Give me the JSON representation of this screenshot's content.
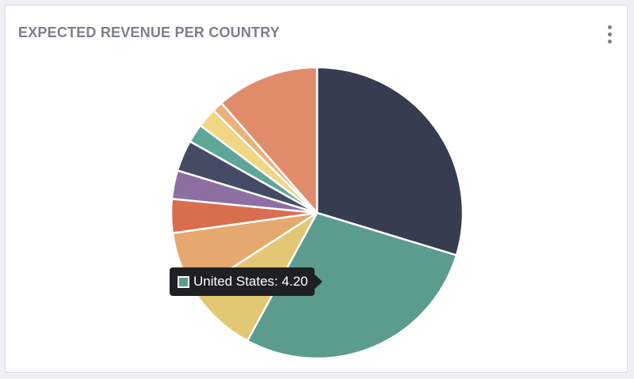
{
  "card": {
    "title": "EXPECTED REVENUE PER COUNTRY",
    "menu_icon": "vertical-ellipsis-icon"
  },
  "tooltip": {
    "country": "United States",
    "separator": ": ",
    "value": "4.20",
    "color": "#5c9c8f"
  },
  "chart_data": {
    "type": "pie",
    "title": "EXPECTED REVENUE PER COUNTRY",
    "start_angle_deg": 0,
    "direction": "clockwise",
    "slices": [
      {
        "label": "",
        "value": 30.0,
        "color": "#373d50"
      },
      {
        "label": "United States",
        "value": 28.5,
        "color": "#5c9c8f"
      },
      {
        "label": "",
        "value": 8.0,
        "color": "#e2c774"
      },
      {
        "label": "",
        "value": 7.0,
        "color": "#e5a86e"
      },
      {
        "label": "",
        "value": 3.8,
        "color": "#d86e4e"
      },
      {
        "label": "",
        "value": 3.2,
        "color": "#8e6fa2"
      },
      {
        "label": "",
        "value": 3.5,
        "color": "#454b62"
      },
      {
        "label": "",
        "value": 2.1,
        "color": "#5ea697"
      },
      {
        "label": "",
        "value": 2.2,
        "color": "#f1d784"
      },
      {
        "label": "",
        "value": 1.2,
        "color": "#ebb07c"
      },
      {
        "label": "",
        "value": 11.5,
        "color": "#e08c6b"
      }
    ]
  }
}
